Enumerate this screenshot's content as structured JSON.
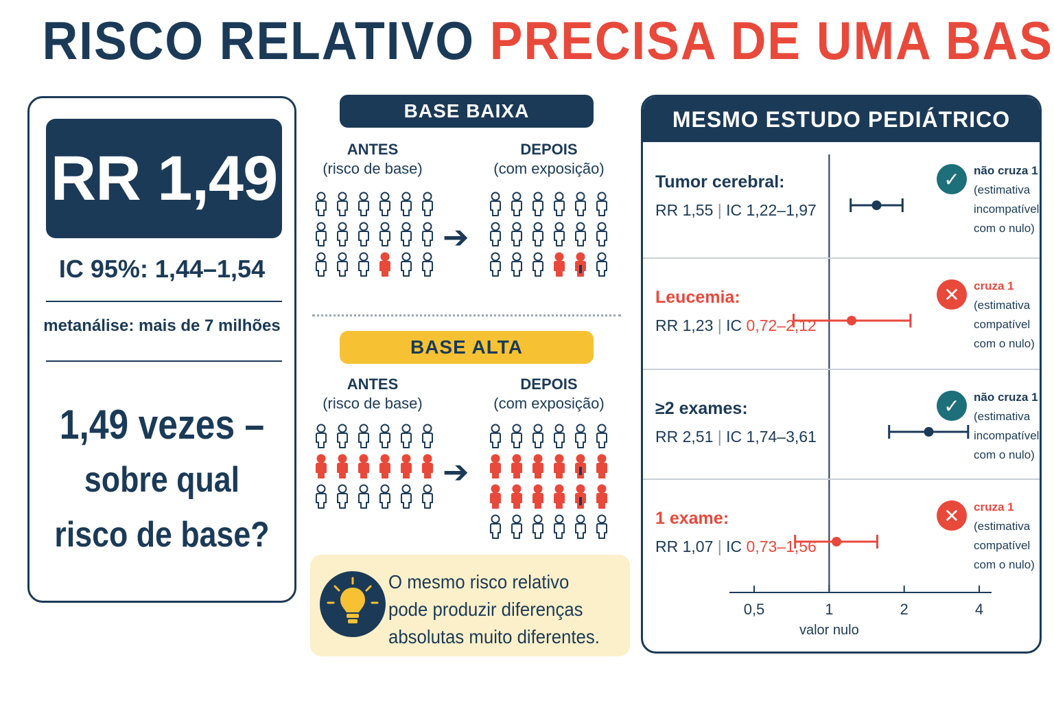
{
  "title": {
    "part1": "RISCO RELATIVO",
    "part2": "PRECISA DE UMA BASE"
  },
  "left": {
    "rr": "RR 1,49",
    "ic": "IC 95%: 1,44–1,54",
    "meta": "metanálise: mais de 7 milhões",
    "question_line1": "1,49 vezes –",
    "question_line2": "sobre qual",
    "question_line3": "risco de base?"
  },
  "middle": {
    "low_label": "BASE BAIXA",
    "high_label": "BASE ALTA",
    "before_title": "ANTES",
    "before_sub": "(risco de base)",
    "after_title": "DEPOIS",
    "after_sub": "(com exposição)",
    "low_before_grid": [
      [
        0,
        0,
        0,
        0,
        0,
        0
      ],
      [
        0,
        0,
        0,
        0,
        0,
        0
      ],
      [
        0,
        0,
        0,
        1,
        0,
        0
      ]
    ],
    "low_after_grid": [
      [
        0,
        0,
        0,
        0,
        0,
        0
      ],
      [
        0,
        0,
        0,
        0,
        0,
        0
      ],
      [
        0,
        0,
        0,
        1,
        2,
        0
      ]
    ],
    "high_before_grid": [
      [
        0,
        0,
        0,
        0,
        0,
        0
      ],
      [
        1,
        1,
        1,
        1,
        1,
        1
      ],
      [
        0,
        0,
        0,
        0,
        0,
        0
      ]
    ],
    "high_after_grid": [
      [
        0,
        0,
        0,
        0,
        0,
        0
      ],
      [
        1,
        1,
        1,
        1,
        2,
        1
      ],
      [
        1,
        1,
        1,
        1,
        2,
        1
      ],
      [
        0,
        0,
        0,
        0,
        0,
        0
      ]
    ],
    "callout": "O mesmo risco relativo pode produzir diferenças absolutas muito diferentes.",
    "colors": {
      "navy": "#1b3a57",
      "red": "#e8493b",
      "yellow": "#f6c233"
    }
  },
  "right": {
    "header": "MESMO ESTUDO PEDIÁTRICO",
    "rows": [
      {
        "label": "Tumor cerebral:",
        "rr": "RR 1,55",
        "ic_prefix": "IC ",
        "ic": "1,22–1,97",
        "point": 1.55,
        "low": 1.22,
        "high": 1.97,
        "crosses": false,
        "note_title": "não cruza 1",
        "note_body": "(estimativa incompatível com o nulo)"
      },
      {
        "label": "Leucemia:",
        "rr": "RR 1,23",
        "ic_prefix": "IC ",
        "ic": "0,72–2,12",
        "point": 1.23,
        "low": 0.72,
        "high": 2.12,
        "crosses": true,
        "note_title": "cruza 1",
        "note_body": "(estimativa compatível com o nulo)"
      },
      {
        "label": "≥2 exames:",
        "rr": "RR 2,51",
        "ic_prefix": "IC ",
        "ic": "1,74–3,61",
        "point": 2.51,
        "low": 1.74,
        "high": 3.61,
        "crosses": false,
        "note_title": "não cruza 1",
        "note_body": "(estimativa incompatível com o nulo)"
      },
      {
        "label": "1 exame:",
        "rr": "RR 1,07",
        "ic_prefix": "IC ",
        "ic": "0,73–1,56",
        "point": 1.07,
        "low": 0.73,
        "high": 1.56,
        "crosses": true,
        "note_title": "cruza 1",
        "note_body": "(estimativa compatível com o nulo)"
      }
    ],
    "axis_ticks": [
      "0,5",
      "1",
      "2",
      "4"
    ],
    "axis_caption": "valor nulo"
  }
}
